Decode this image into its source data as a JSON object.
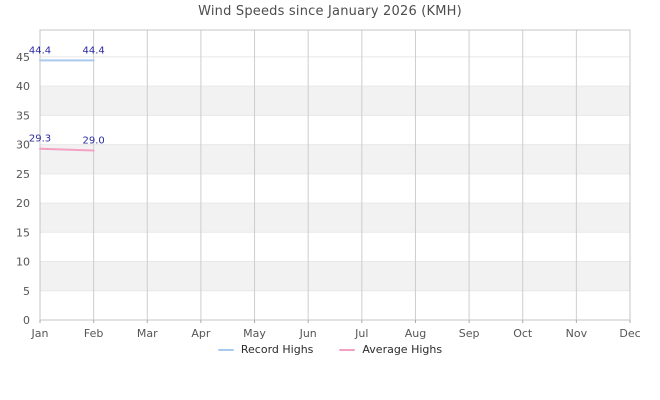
{
  "chart_data": {
    "type": "line",
    "title": "Wind Speeds since January 2026 (KMH)",
    "categories": [
      "Jan",
      "Feb",
      "Mar",
      "Apr",
      "May",
      "Jun",
      "Jul",
      "Aug",
      "Sep",
      "Oct",
      "Nov",
      "Dec"
    ],
    "series": [
      {
        "name": "Record Highs",
        "color": "#a9c9ee",
        "values": [
          44.4,
          44.4
        ],
        "point_labels": [
          "44.4",
          "44.4"
        ]
      },
      {
        "name": "Average Highs",
        "color": "#f3a1c3",
        "values": [
          29.3,
          29.0
        ],
        "point_labels": [
          "29.3",
          "29.0"
        ]
      }
    ],
    "xlabel": "",
    "ylabel": "",
    "yticks": [
      0,
      5,
      10,
      15,
      20,
      25,
      30,
      35,
      40,
      45
    ],
    "ytick_labels": [
      "0",
      "5",
      "10",
      "15",
      "20",
      "25",
      "30",
      "35",
      "40",
      "45"
    ],
    "ylim": [
      0,
      49.6
    ],
    "grid": true,
    "legend_position": "bottom",
    "colors": {
      "band_alt": "#f2f2f2",
      "band_base": "#ffffff",
      "h_gridline": "#e8e8e8",
      "v_gridline": "#cdcdcd",
      "plot_border": "#c4c4c4",
      "tick_mark": "#aaaaaa",
      "axis_text": "#555555",
      "point_label_text": "#2a2aa4",
      "title_text": "#4d4d4d"
    }
  }
}
